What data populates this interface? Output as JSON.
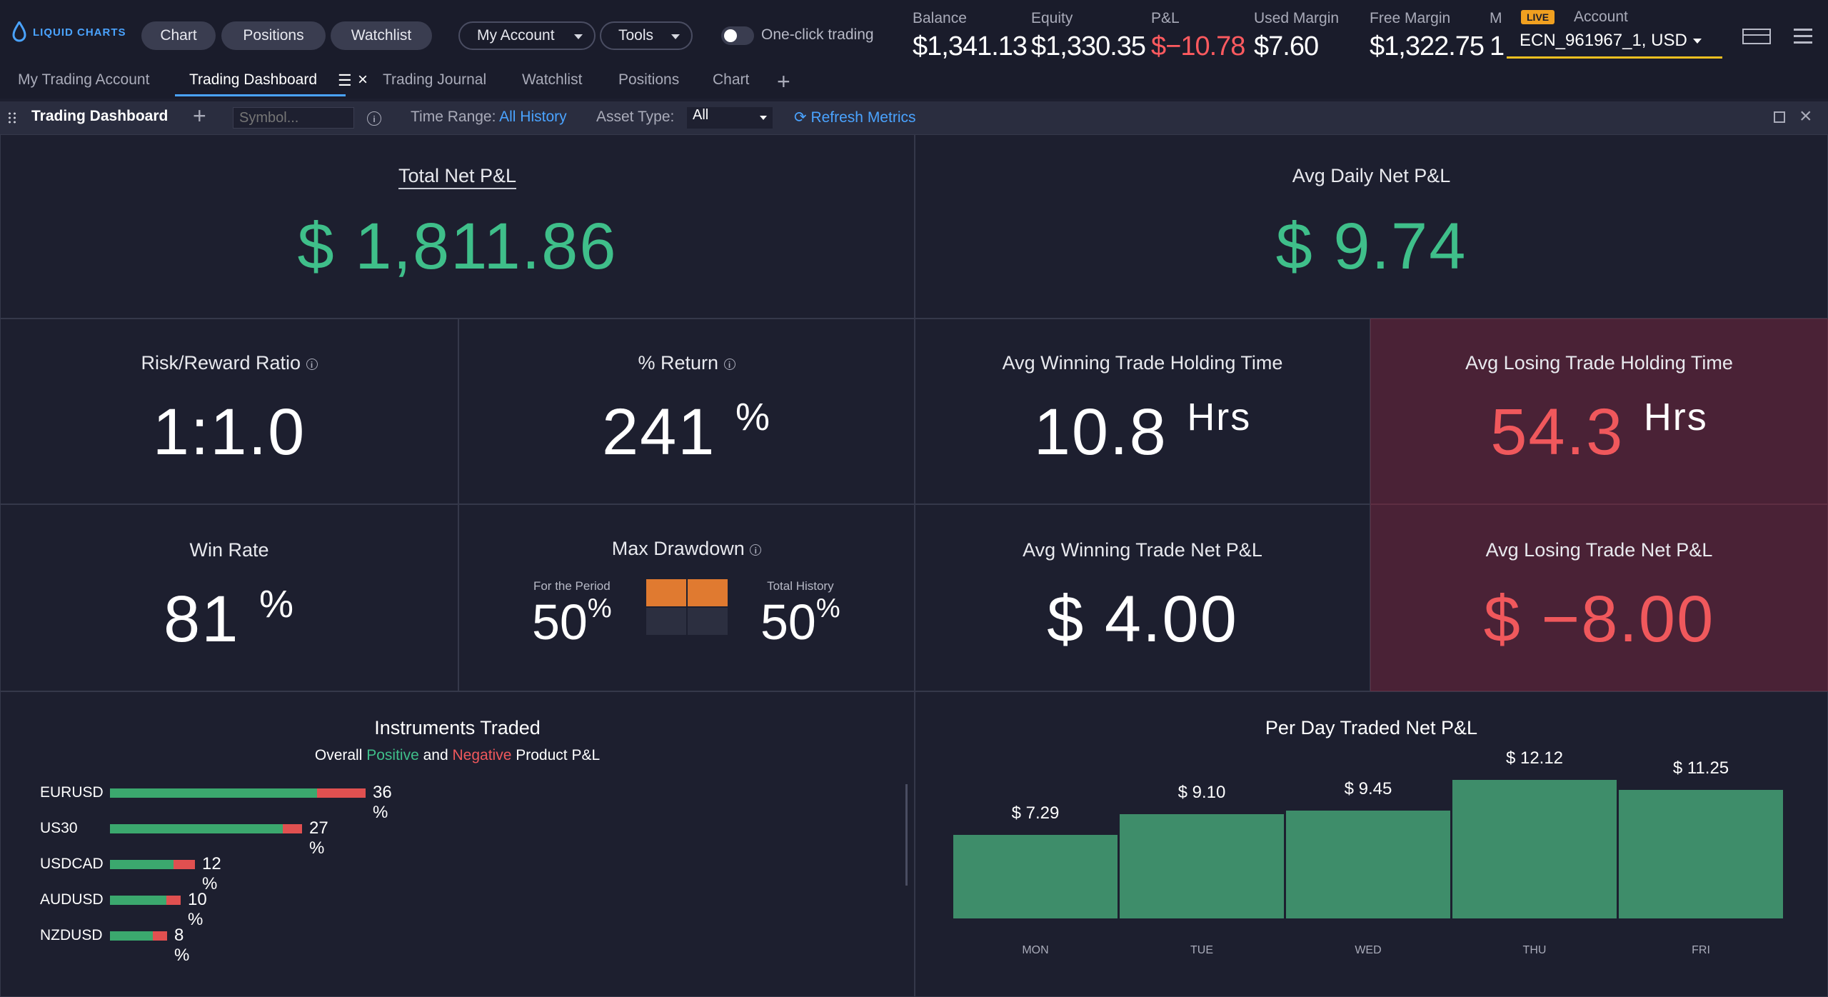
{
  "brand": {
    "logo_text": "LIQUID CHARTS"
  },
  "topnav": {
    "chart": "Chart",
    "positions": "Positions",
    "watchlist": "Watchlist",
    "my_account": "My Account",
    "tools": "Tools",
    "one_click": "One-click trading"
  },
  "stats": [
    {
      "label": "Balance",
      "value": "$1,341.13"
    },
    {
      "label": "Equity",
      "value": "$1,330.35"
    },
    {
      "label": "P&L",
      "value": "$−10.78"
    },
    {
      "label": "Used Margin",
      "value": "$7.60"
    },
    {
      "label": "Free Margin",
      "value": "$1,322.75"
    },
    {
      "label": "M",
      "value": "1"
    }
  ],
  "account": {
    "badge": "LIVE",
    "label": "Account",
    "value": "ECN_961967_1, USD"
  },
  "tabs": [
    "My Trading Account",
    "Trading Dashboard",
    "Trading Journal",
    "Watchlist",
    "Positions",
    "Chart"
  ],
  "toolbar": {
    "title": "Trading Dashboard",
    "search_placeholder": "Symbol...",
    "time_range_label": "Time Range:",
    "time_range_value": "All History",
    "asset_type_label": "Asset Type:",
    "asset_type_value": "All",
    "refresh": "Refresh Metrics"
  },
  "metrics": {
    "total_net_pl": {
      "title": "Total Net P&L",
      "value": "$ 1,811.86"
    },
    "avg_daily_net_pl": {
      "title": "Avg Daily Net P&L",
      "value": "$ 9.74"
    },
    "risk_reward": {
      "title": "Risk/Reward Ratio",
      "value": "1:1.0"
    },
    "pct_return": {
      "title": "% Return",
      "value": "241",
      "unit": "%"
    },
    "avg_win_hold": {
      "title": "Avg Winning Trade Holding Time",
      "value": "10.8",
      "unit": "Hrs"
    },
    "avg_loss_hold": {
      "title": "Avg Losing Trade Holding Time",
      "value": "54.3",
      "unit": "Hrs"
    },
    "win_rate": {
      "title": "Win Rate",
      "value": "81",
      "unit": "%"
    },
    "max_drawdown": {
      "title": "Max Drawdown",
      "period_label": "For the Period",
      "period_value": "50",
      "total_label": "Total History",
      "total_value": "50",
      "unit": "%"
    },
    "avg_win_pl": {
      "title": "Avg Winning Trade Net P&L",
      "value": "$ 4.00"
    },
    "avg_loss_pl": {
      "title": "Avg Losing Trade Net P&L",
      "value": "$ −8.00"
    }
  },
  "instruments": {
    "title": "Instruments Traded",
    "subtitle_pre": "Overall",
    "subtitle_pos": "Positive",
    "subtitle_and": "and",
    "subtitle_neg": "Negative",
    "subtitle_post": "Product P&L",
    "items": [
      {
        "name": "EURUSD",
        "pct_label": "36 %",
        "share": 36,
        "neg_fraction": 0.19
      },
      {
        "name": "US30",
        "pct_label": "27 %",
        "share": 27,
        "neg_fraction": 0.1
      },
      {
        "name": "USDCAD",
        "pct_label": "12 %",
        "share": 12,
        "neg_fraction": 0.25
      },
      {
        "name": "AUDUSD",
        "pct_label": "10 %",
        "share": 10,
        "neg_fraction": 0.2
      },
      {
        "name": "NZDUSD",
        "pct_label": "8 %",
        "share": 8,
        "neg_fraction": 0.25
      }
    ]
  },
  "chart_data": {
    "type": "bar",
    "title": "Per Day Traded Net P&L",
    "categories": [
      "MON",
      "TUE",
      "WED",
      "THU",
      "FRI"
    ],
    "values": [
      7.29,
      9.1,
      9.45,
      12.12,
      11.25
    ],
    "value_labels": [
      "$ 7.29",
      "$ 9.10",
      "$ 9.45",
      "$ 12.12",
      "$ 11.25"
    ],
    "ylim": [
      0,
      12.12
    ],
    "grid": false,
    "color": "#3e8d6a"
  },
  "colors": {
    "positive": "#3fbf8a",
    "negative": "#f0585c",
    "accent": "#4aa3ff",
    "drawdown": "#e07a30"
  }
}
